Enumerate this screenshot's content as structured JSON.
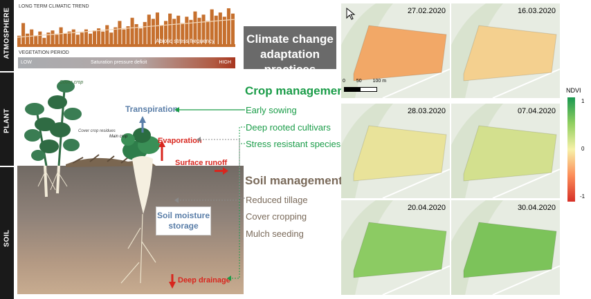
{
  "sidebar": {
    "labels": [
      "ATMOSPHERE",
      "PLANT",
      "SOIL"
    ]
  },
  "climate_chart": {
    "title": "LONG TERM CLIMATIC TREND",
    "legend_label": "Abiotic stress frequency",
    "bar_color": "#c6702e",
    "chart_data": {
      "type": "bar",
      "title": "LONG TERM CLIMATIC TREND",
      "series": [
        {
          "name": "Abiotic stress frequency",
          "values": [
            8,
            20,
            10,
            14,
            8,
            12,
            6,
            11,
            13,
            9,
            16,
            10,
            12,
            14,
            9,
            11,
            14,
            10,
            13,
            15,
            12,
            18,
            11,
            16,
            22,
            14,
            17,
            25,
            19,
            15,
            21,
            28,
            24,
            30,
            18,
            22,
            29,
            24,
            27,
            20,
            26,
            23,
            31,
            25,
            28,
            22,
            33,
            27,
            30,
            26,
            34,
            29
          ]
        }
      ],
      "trend": "increasing"
    }
  },
  "vegetation": {
    "title": "VEGETATION PERIOD",
    "center_label": "Saturation pressure deficit",
    "low_label": "LOW",
    "high_label": "HIGH"
  },
  "diagram": {
    "labels": {
      "cover_crop": "Cover crop",
      "main_crop": "Main crop",
      "cover_crop_residues": "Cover crop residues",
      "transpiration": "Transpiration",
      "evaporation": "Evaporation",
      "surface_runoff": "Surface runoff",
      "soil_moisture": [
        "Soil moisture",
        "storage"
      ],
      "deep_drainage": "Deep drainage"
    },
    "colors": {
      "green_link": "#1a9c48",
      "grey_link": "#8a8a8a",
      "red_flux": "#d8261e",
      "blue_flux": "#5a7ea8"
    }
  },
  "practices": {
    "title": [
      "Climate change",
      "adaptation practices"
    ],
    "crop_management": {
      "heading": "Crop management",
      "items": [
        "Early sowing",
        "Deep rooted cultivars",
        "Stress resistant species"
      ]
    },
    "soil_management": {
      "heading": "Soil management",
      "items": [
        "Reduced tillage",
        "Cover cropping",
        "Mulch seeding"
      ]
    }
  },
  "ndvi": {
    "title": "NDVI",
    "ticks": [
      "1",
      "0",
      "-1"
    ],
    "scale_bar": [
      "0",
      "50",
      "100 m"
    ],
    "panels": [
      {
        "date": "27.02.2020",
        "color": "#f2a867",
        "ndvi": -0.45
      },
      {
        "date": "16.03.2020",
        "color": "#f4d08f",
        "ndvi": -0.2
      },
      {
        "date": "28.03.2020",
        "color": "#e9e39a",
        "ndvi": 0.05
      },
      {
        "date": "07.04.2020",
        "color": "#d3e08e",
        "ndvi": 0.2
      },
      {
        "date": "20.04.2020",
        "color": "#8ccb63",
        "ndvi": 0.6
      },
      {
        "date": "30.04.2020",
        "color": "#7cc35a",
        "ndvi": 0.7
      }
    ]
  }
}
